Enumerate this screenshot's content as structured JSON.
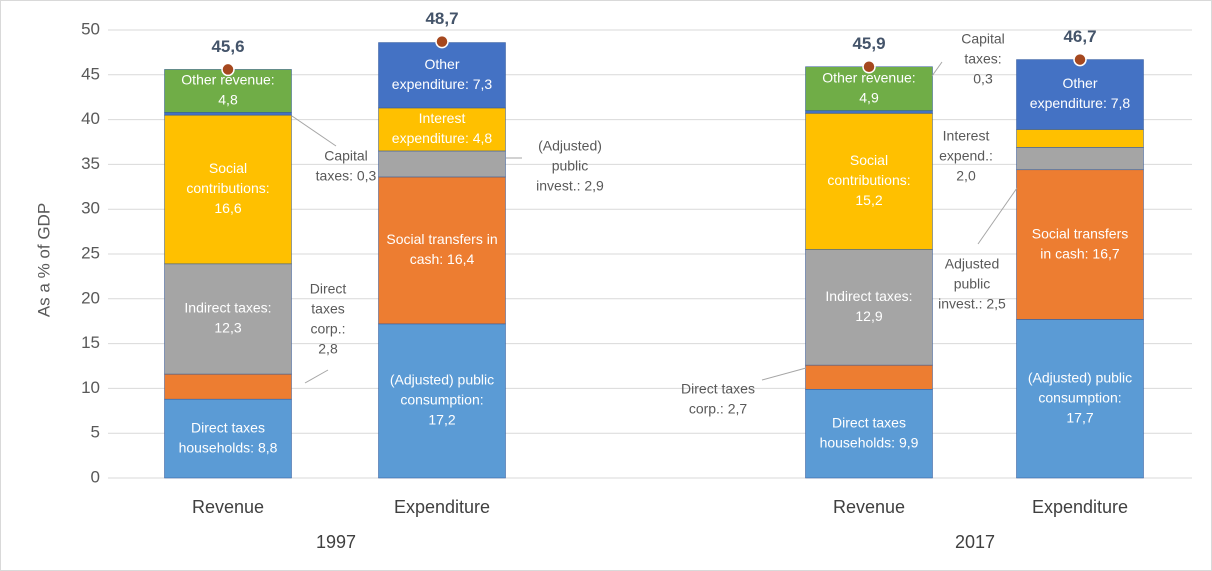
{
  "chart_data": {
    "type": "stacked_bar",
    "y_axis_label": "As a % of GDP",
    "ylim": [
      0,
      50
    ],
    "yticks": [
      0,
      5,
      10,
      15,
      20,
      25,
      30,
      35,
      40,
      45,
      50
    ],
    "grid": true,
    "total_marker_color": "#a5481f",
    "groups": [
      {
        "label": "1997",
        "bars": [
          {
            "category": "Revenue",
            "total": 45.6,
            "total_label": "45,6",
            "segments": [
              {
                "value": 8.8,
                "color": "#5b9bd5",
                "label": [
                  "Direct taxes",
                  "households: 8,8"
                ]
              },
              {
                "value": 2.8,
                "color": "#ed7d31",
                "label": [
                  "Direct",
                  "taxes",
                  "corp.:",
                  "2,8"
                ]
              },
              {
                "value": 12.3,
                "color": "#a5a5a5",
                "label": [
                  "Indirect taxes:",
                  "12,3"
                ]
              },
              {
                "value": 16.6,
                "color": "#ffc000",
                "label": [
                  "Social",
                  "contributions:",
                  "16,6"
                ]
              },
              {
                "value": 0.3,
                "color": "#4472c4",
                "label": [
                  "Capital",
                  "taxes: 0,3"
                ]
              },
              {
                "value": 4.8,
                "color": "#70ad47",
                "label": [
                  "Other revenue:",
                  "4,8"
                ]
              }
            ]
          },
          {
            "category": "Expenditure",
            "total": 48.7,
            "total_label": "48,7",
            "segments": [
              {
                "value": 17.2,
                "color": "#5b9bd5",
                "label": [
                  "(Adjusted) public",
                  "consumption:",
                  "17,2"
                ]
              },
              {
                "value": 16.4,
                "color": "#ed7d31",
                "label": [
                  "Social transfers in",
                  "cash: 16,4"
                ]
              },
              {
                "value": 2.9,
                "color": "#a5a5a5",
                "label": [
                  "(Adjusted)",
                  "public",
                  "invest.: 2,9"
                ]
              },
              {
                "value": 4.8,
                "color": "#ffc000",
                "label": [
                  "Interest",
                  "expenditure: 4,8"
                ]
              },
              {
                "value": 7.3,
                "color": "#4472c4",
                "label": [
                  "Other",
                  "expenditure: 7,3"
                ]
              }
            ]
          }
        ]
      },
      {
        "label": "2017",
        "bars": [
          {
            "category": "Revenue",
            "total": 45.9,
            "total_label": "45,9",
            "segments": [
              {
                "value": 9.9,
                "color": "#5b9bd5",
                "label": [
                  "Direct taxes",
                  "households: 9,9"
                ]
              },
              {
                "value": 2.7,
                "color": "#ed7d31",
                "label": [
                  "Direct taxes",
                  "corp.: 2,7"
                ]
              },
              {
                "value": 12.9,
                "color": "#a5a5a5",
                "label": [
                  "Indirect taxes:",
                  "12,9"
                ]
              },
              {
                "value": 15.2,
                "color": "#ffc000",
                "label": [
                  "Social",
                  "contributions:",
                  "15,2"
                ]
              },
              {
                "value": 0.3,
                "color": "#4472c4",
                "label": [
                  "Capital",
                  "taxes:",
                  "0,3"
                ]
              },
              {
                "value": 4.9,
                "color": "#70ad47",
                "label": [
                  "Other revenue:",
                  "4,9"
                ]
              }
            ]
          },
          {
            "category": "Expenditure",
            "total": 46.7,
            "total_label": "46,7",
            "segments": [
              {
                "value": 17.7,
                "color": "#5b9bd5",
                "label": [
                  "(Adjusted) public",
                  "consumption:",
                  "17,7"
                ]
              },
              {
                "value": 16.7,
                "color": "#ed7d31",
                "label": [
                  "Social transfers",
                  "in cash: 16,7"
                ]
              },
              {
                "value": 2.5,
                "color": "#a5a5a5",
                "label": [
                  "Adjusted",
                  "public",
                  "invest.: 2,5"
                ]
              },
              {
                "value": 2.0,
                "color": "#ffc000",
                "label": [
                  "Interest",
                  "expend.:",
                  "2,0"
                ]
              },
              {
                "value": 7.8,
                "color": "#4472c4",
                "label": [
                  "Other",
                  "expenditure: 7,8"
                ]
              }
            ]
          }
        ]
      }
    ]
  }
}
